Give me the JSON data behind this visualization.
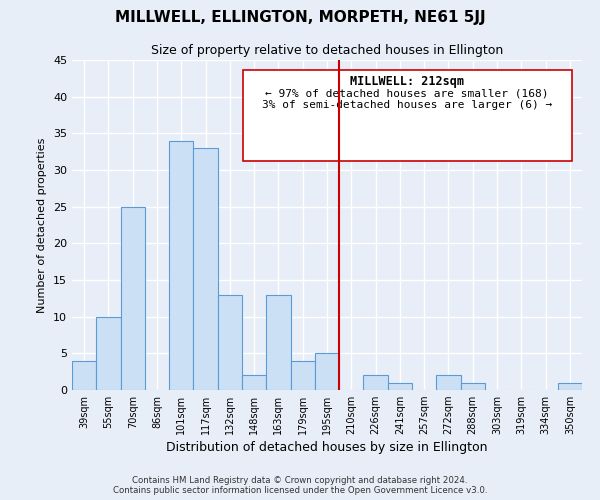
{
  "title": "MILLWELL, ELLINGTON, MORPETH, NE61 5JJ",
  "subtitle": "Size of property relative to detached houses in Ellington",
  "xlabel": "Distribution of detached houses by size in Ellington",
  "ylabel": "Number of detached properties",
  "bar_labels": [
    "39sqm",
    "55sqm",
    "70sqm",
    "86sqm",
    "101sqm",
    "117sqm",
    "132sqm",
    "148sqm",
    "163sqm",
    "179sqm",
    "195sqm",
    "210sqm",
    "226sqm",
    "241sqm",
    "257sqm",
    "272sqm",
    "288sqm",
    "303sqm",
    "319sqm",
    "334sqm",
    "350sqm"
  ],
  "bar_values": [
    4,
    10,
    25,
    0,
    34,
    33,
    13,
    2,
    13,
    4,
    5,
    0,
    2,
    1,
    0,
    2,
    1,
    0,
    0,
    0,
    1
  ],
  "bar_color": "#cce0f5",
  "bar_edge_color": "#5b9bd5",
  "vline_color": "#cc0000",
  "ylim": [
    0,
    45
  ],
  "yticks": [
    0,
    5,
    10,
    15,
    20,
    25,
    30,
    35,
    40,
    45
  ],
  "annotation_title": "MILLWELL: 212sqm",
  "annotation_line1": "← 97% of detached houses are smaller (168)",
  "annotation_line2": "3% of semi-detached houses are larger (6) →",
  "footnote1": "Contains HM Land Registry data © Crown copyright and database right 2024.",
  "footnote2": "Contains public sector information licensed under the Open Government Licence v3.0.",
  "bg_color": "#e8eef7",
  "plot_bg_color": "#e8eef7"
}
